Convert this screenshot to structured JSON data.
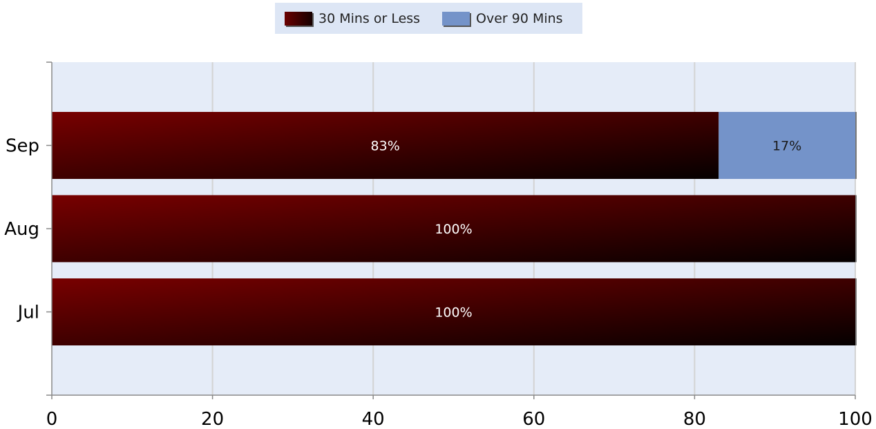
{
  "chart_data": {
    "type": "bar",
    "orientation": "horizontal",
    "stacked": true,
    "categories": [
      "Sep",
      "Aug",
      "Jul"
    ],
    "series": [
      {
        "name": "30 Mins or Less",
        "values": [
          83,
          100,
          100
        ],
        "labels": [
          "83%",
          "100%",
          "100%"
        ],
        "color": "#6a0000"
      },
      {
        "name": "Over 90 Mins",
        "values": [
          17,
          0,
          0
        ],
        "labels": [
          "17%",
          "",
          ""
        ],
        "color": "#7493c9"
      }
    ],
    "xlim": [
      0,
      100
    ],
    "x_ticks": [
      "0",
      "20",
      "40",
      "60",
      "80",
      "100"
    ],
    "title": "",
    "xlabel": "",
    "ylabel": "",
    "grid": true,
    "legend_position": "top-center",
    "plot_background": "#e5ecf8"
  }
}
